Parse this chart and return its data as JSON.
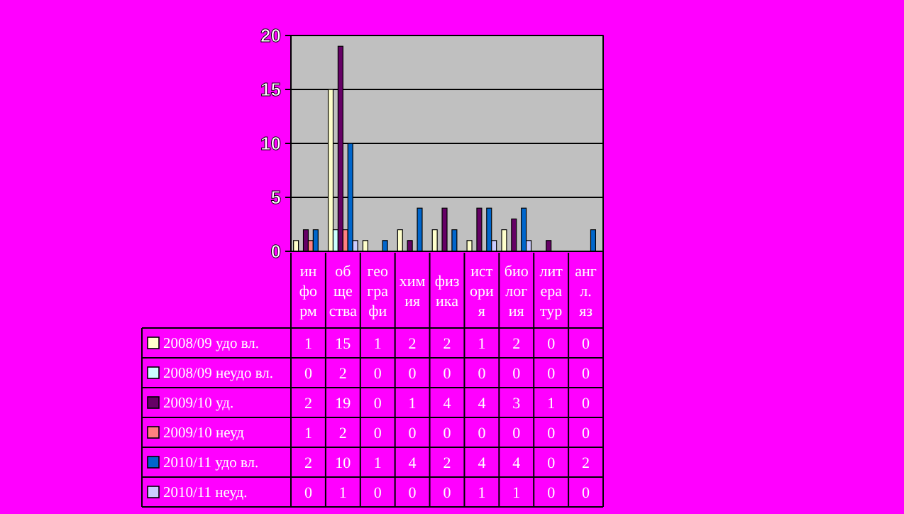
{
  "chart_data": {
    "type": "bar",
    "categories": [
      "ин фо рм",
      "об ще ства",
      "гео гра фи",
      "хим ия",
      "физ ика",
      "ист ори я",
      "био лог ия",
      "лит ера тур",
      "анг л. яз"
    ],
    "series": [
      {
        "name": "2008/09 удо вл.",
        "color": "#ffffcc",
        "values": [
          1,
          15,
          1,
          2,
          2,
          1,
          2,
          0,
          0
        ]
      },
      {
        "name": "2008/09 неудо вл.",
        "color": "#ccffff",
        "values": [
          0,
          2,
          0,
          0,
          0,
          0,
          0,
          0,
          0
        ]
      },
      {
        "name": "2009/10 уд.",
        "color": "#660066",
        "values": [
          2,
          19,
          0,
          1,
          4,
          4,
          3,
          1,
          0
        ]
      },
      {
        "name": "2009/10 неуд",
        "color": "#ff8080",
        "values": [
          1,
          2,
          0,
          0,
          0,
          0,
          0,
          0,
          0
        ]
      },
      {
        "name": "2010/11 удо вл.",
        "color": "#0066cc",
        "values": [
          2,
          10,
          1,
          4,
          2,
          4,
          4,
          0,
          2
        ]
      },
      {
        "name": "2010/11 неуд.",
        "color": "#ccccff",
        "values": [
          0,
          1,
          0,
          0,
          0,
          1,
          1,
          0,
          0
        ]
      }
    ],
    "ylim": [
      0,
      20
    ],
    "yticks": [
      0,
      5,
      10,
      15,
      20
    ],
    "grid": "y",
    "legend": "bottom",
    "data_labels": true
  }
}
